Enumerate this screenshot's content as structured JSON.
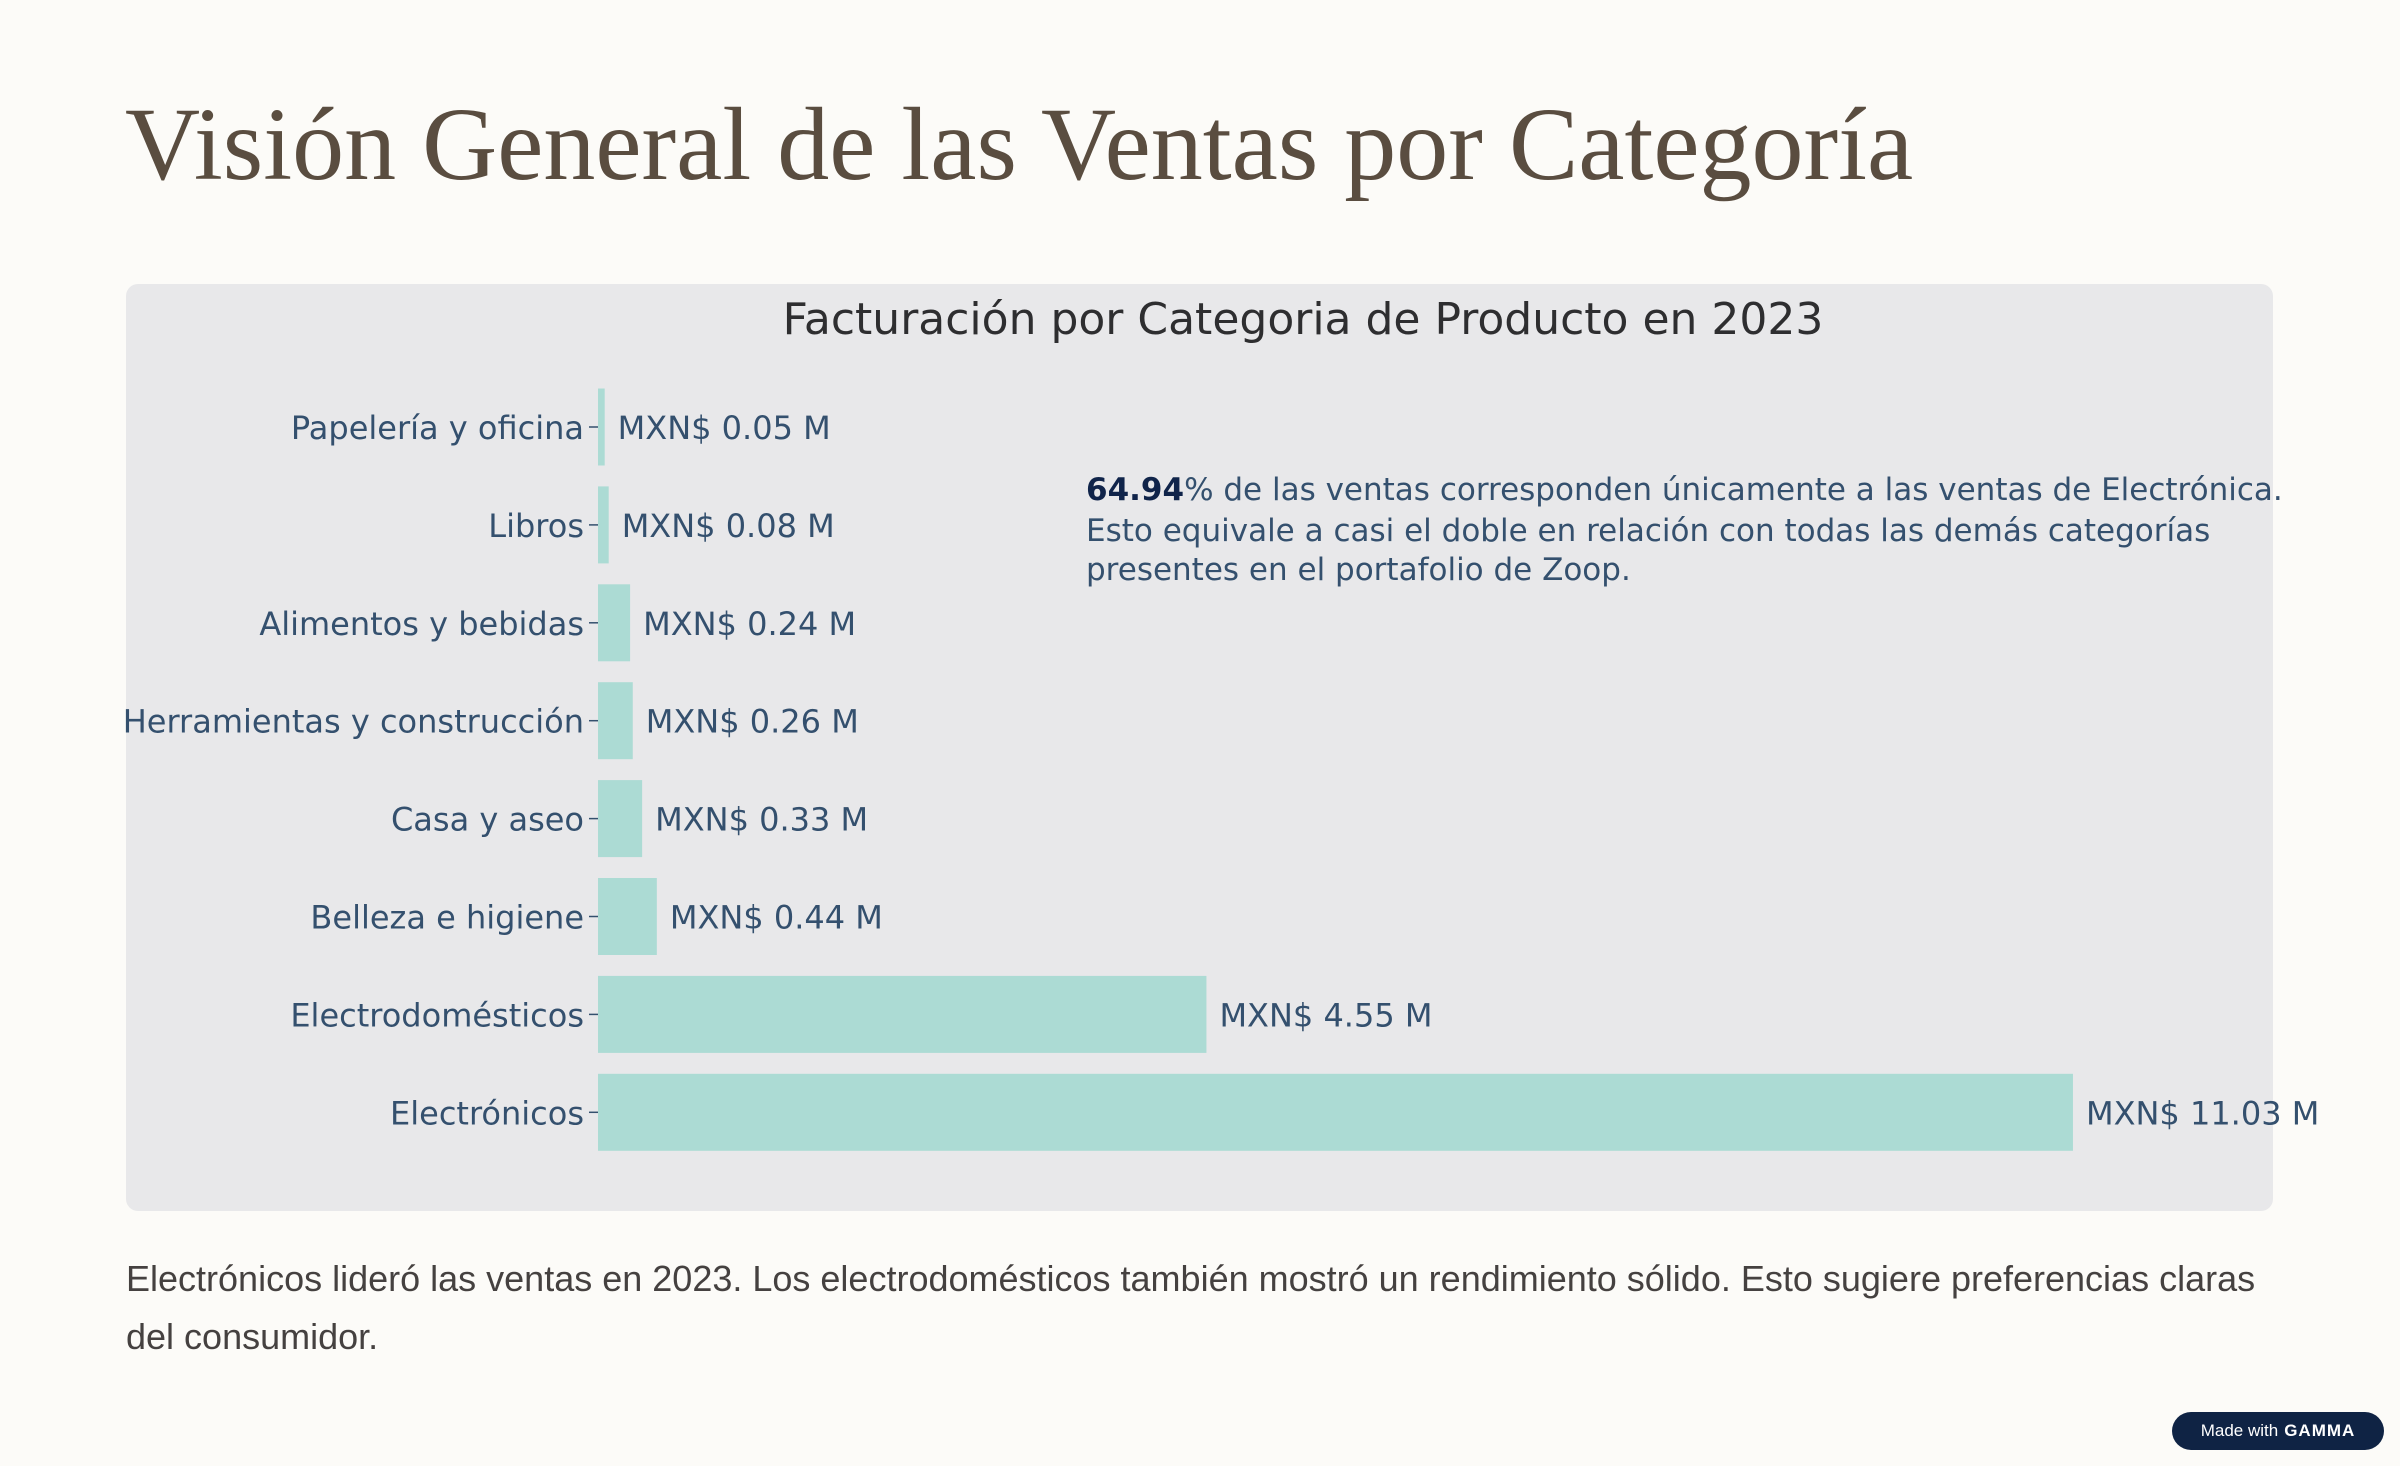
{
  "slide": {
    "title": "Visión General de las Ventas por Categoría",
    "caption": "Electrónicos lideró las ventas en 2023. Los electrodomésticos también mostró un rendimiento sólido. Esto sugiere preferencias claras del consumidor."
  },
  "badge": {
    "made_with": "Made with",
    "brand": "GAMMA"
  },
  "colors": {
    "bar": "#acdbd4",
    "label_text": "#34506e",
    "title_text": "#2e2e30",
    "annotation_bold": "#10244a"
  },
  "chart_data": {
    "type": "bar",
    "orientation": "horizontal",
    "title": "Facturación por Categoria de Producto en 2023",
    "categories": [
      "Papelería y oficina",
      "Libros",
      "Alimentos y bebidas",
      "Herramientas y construcción",
      "Casa y aseo",
      "Belleza e higiene",
      "Electrodomésticos",
      "Electrónicos"
    ],
    "values": [
      0.05,
      0.08,
      0.24,
      0.26,
      0.33,
      0.44,
      4.55,
      11.03
    ],
    "data_labels": [
      "MXN$ 0.05 M",
      "MXN$ 0.08 M",
      "MXN$ 0.24 M",
      "MXN$ 0.26 M",
      "MXN$ 0.33 M",
      "MXN$ 0.44 M",
      "MXN$ 4.55 M",
      "MXN$ 11.03 M"
    ],
    "xlim": [
      0,
      13.7
    ],
    "x_axis_visible": false,
    "grid": false,
    "annotation": {
      "bold": "64.94",
      "line1_rest": "% de las ventas corresponden únicamente a las ventas de Electrónica.",
      "line2": "Esto equivale a casi el doble en relación con todas las demás categorías",
      "line3": "presentes en el portafolio de Zoop."
    }
  }
}
